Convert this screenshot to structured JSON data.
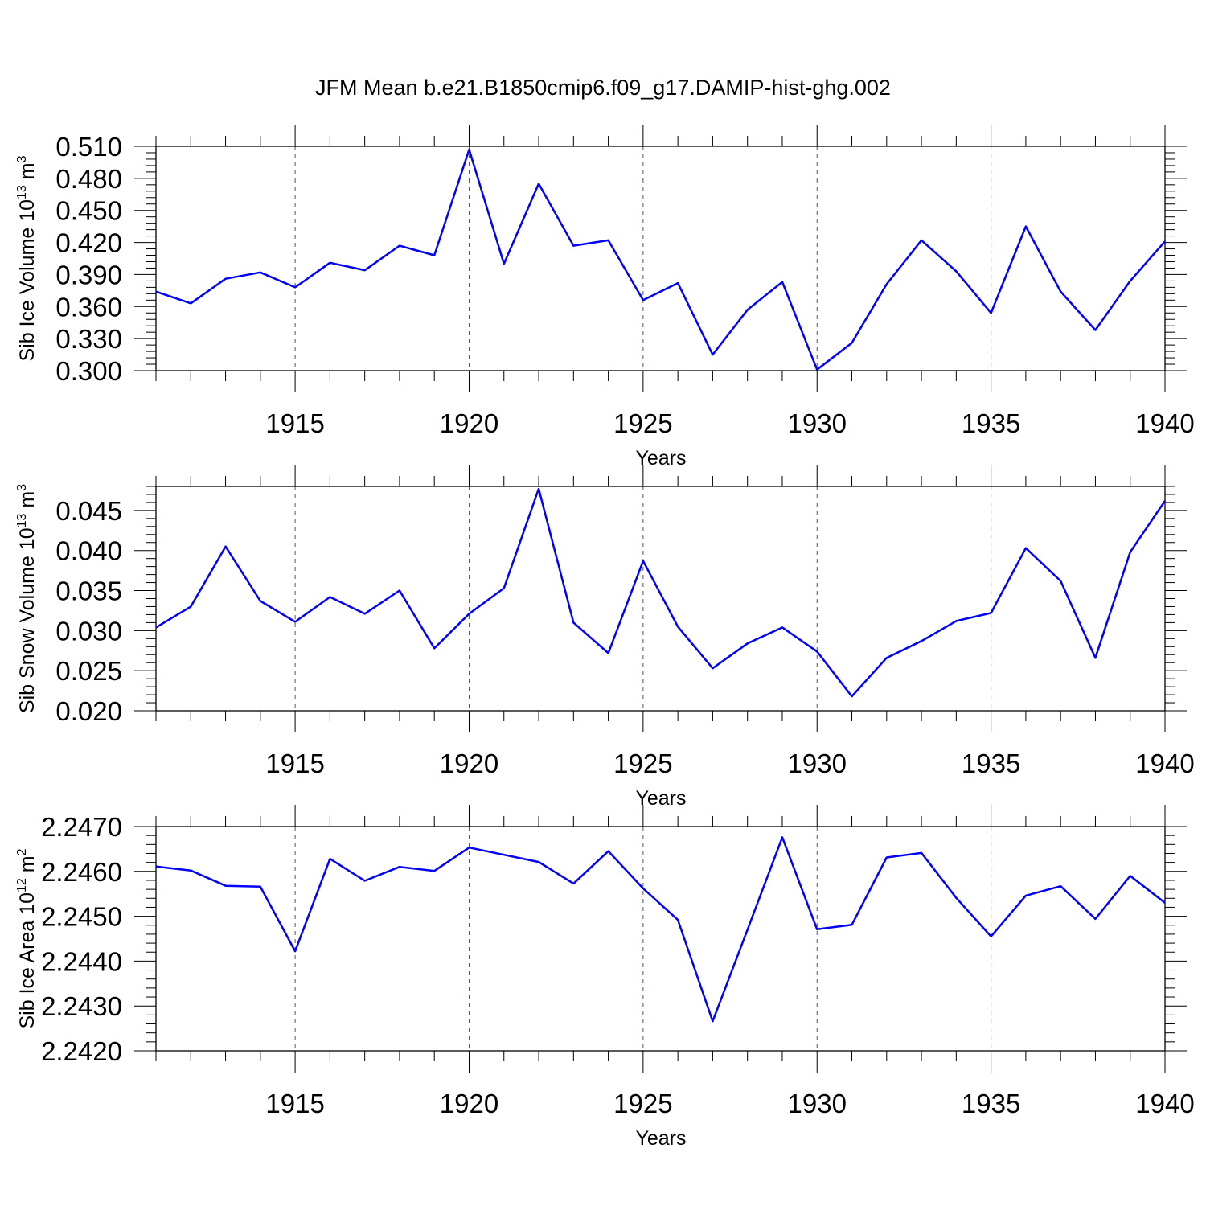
{
  "title": "JFM Mean b.e21.B1850cmip6.f09_g17.DAMIP-hist-ghg.002",
  "chart_data": [
    {
      "type": "line",
      "ylabel": "Sib Ice Volume 10",
      "ylabel_exp": "13",
      "ylabel_unit": "m",
      "ylabel_unit_exp": "3",
      "xlabel": "Years",
      "xlim": [
        1911,
        1940
      ],
      "ylim": [
        0.3,
        0.51
      ],
      "yticks": [
        "0.300",
        "0.330",
        "0.360",
        "0.390",
        "0.420",
        "0.450",
        "0.480",
        "0.510"
      ],
      "ytick_values": [
        0.3,
        0.33,
        0.36,
        0.39,
        0.42,
        0.45,
        0.48,
        0.51
      ],
      "yminor_step": 0.006,
      "xticks": [
        "1915",
        "1920",
        "1925",
        "1930",
        "1935",
        "1940"
      ],
      "xtick_values": [
        1915,
        1920,
        1925,
        1930,
        1935,
        1940
      ],
      "color": "#0000ff",
      "x": [
        1911,
        1912,
        1913,
        1914,
        1915,
        1916,
        1917,
        1918,
        1919,
        1920,
        1921,
        1922,
        1923,
        1924,
        1925,
        1926,
        1927,
        1928,
        1929,
        1930,
        1931,
        1932,
        1933,
        1934,
        1935,
        1936,
        1937,
        1938,
        1939,
        1940
      ],
      "y": [
        0.374,
        0.363,
        0.386,
        0.392,
        0.378,
        0.401,
        0.394,
        0.417,
        0.408,
        0.507,
        0.4,
        0.475,
        0.417,
        0.422,
        0.366,
        0.382,
        0.315,
        0.357,
        0.383,
        0.301,
        0.326,
        0.381,
        0.422,
        0.393,
        0.354,
        0.435,
        0.374,
        0.338,
        0.384,
        0.421
      ]
    },
    {
      "type": "line",
      "ylabel": "Sib Snow Volume 10",
      "ylabel_exp": "13",
      "ylabel_unit": "m",
      "ylabel_unit_exp": "3",
      "xlabel": "Years",
      "xlim": [
        1911,
        1940
      ],
      "ylim": [
        0.02,
        0.048
      ],
      "yticks": [
        "0.020",
        "0.025",
        "0.030",
        "0.035",
        "0.040",
        "0.045"
      ],
      "ytick_values": [
        0.02,
        0.025,
        0.03,
        0.035,
        0.04,
        0.045
      ],
      "yminor_step": 0.001,
      "xticks": [
        "1915",
        "1920",
        "1925",
        "1930",
        "1935",
        "1940"
      ],
      "xtick_values": [
        1915,
        1920,
        1925,
        1930,
        1935,
        1940
      ],
      "color": "#0000ff",
      "x": [
        1911,
        1912,
        1913,
        1914,
        1915,
        1916,
        1917,
        1918,
        1919,
        1920,
        1921,
        1922,
        1923,
        1924,
        1925,
        1926,
        1927,
        1928,
        1929,
        1930,
        1931,
        1932,
        1933,
        1934,
        1935,
        1936,
        1937,
        1938,
        1939,
        1940
      ],
      "y": [
        0.0304,
        0.033,
        0.0405,
        0.0337,
        0.0311,
        0.0342,
        0.0321,
        0.035,
        0.0278,
        0.0321,
        0.0353,
        0.0477,
        0.031,
        0.0272,
        0.0387,
        0.0305,
        0.0253,
        0.0284,
        0.0304,
        0.0274,
        0.0218,
        0.0266,
        0.0287,
        0.0312,
        0.0322,
        0.0403,
        0.0362,
        0.0266,
        0.0398,
        0.0462
      ]
    },
    {
      "type": "line",
      "ylabel": "Sib Ice Area 10",
      "ylabel_exp": "12",
      "ylabel_unit": "m",
      "ylabel_unit_exp": "2",
      "xlabel": "Years",
      "xlim": [
        1911,
        1940
      ],
      "ylim": [
        2.242,
        2.247
      ],
      "yticks": [
        "2.2420",
        "2.2430",
        "2.2440",
        "2.2450",
        "2.2460",
        "2.2470"
      ],
      "ytick_values": [
        2.242,
        2.243,
        2.244,
        2.245,
        2.246,
        2.247
      ],
      "yminor_step": 0.0002,
      "xticks": [
        "1915",
        "1920",
        "1925",
        "1930",
        "1935",
        "1940"
      ],
      "xtick_values": [
        1915,
        1920,
        1925,
        1930,
        1935,
        1940
      ],
      "color": "#0000ff",
      "x": [
        1911,
        1912,
        1913,
        1914,
        1915,
        1916,
        1917,
        1918,
        1919,
        1920,
        1921,
        1922,
        1923,
        1924,
        1925,
        1926,
        1927,
        1928,
        1929,
        1930,
        1931,
        1932,
        1933,
        1934,
        1935,
        1936,
        1937,
        1938,
        1939,
        1940
      ],
      "y": [
        2.24611,
        2.24602,
        2.24568,
        2.24566,
        2.24422,
        2.24628,
        2.24579,
        2.2461,
        2.24601,
        2.24653,
        2.24637,
        2.24621,
        2.24573,
        2.24645,
        2.24562,
        2.24492,
        2.24266,
        2.2447,
        2.24676,
        2.24471,
        2.24481,
        2.24631,
        2.24641,
        2.24541,
        2.24455,
        2.24546,
        2.24567,
        2.24494,
        2.2459,
        2.2453
      ]
    }
  ]
}
